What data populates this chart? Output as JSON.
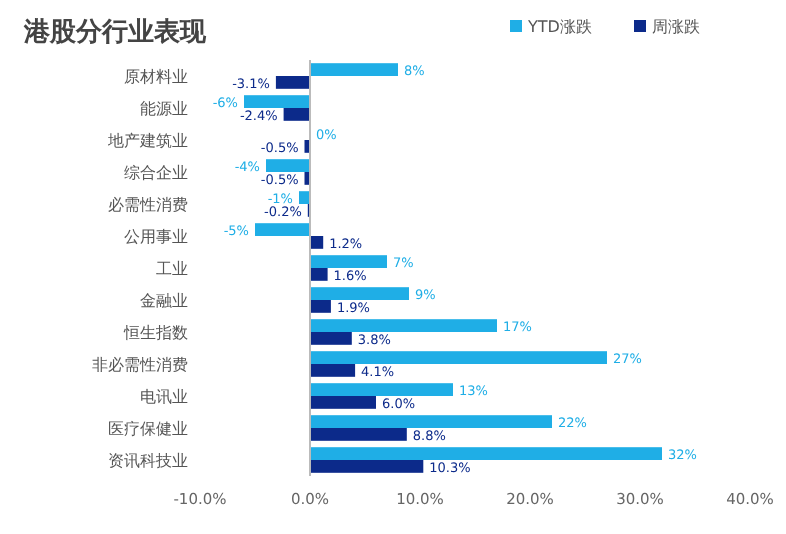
{
  "chart_data": {
    "type": "bar",
    "orientation": "horizontal",
    "title": "港股分行业表现",
    "legend": "top right",
    "categories": [
      "原材料业",
      "能源业",
      "地产建筑业",
      "综合企业",
      "必需性消费",
      "公用事业",
      "工业",
      "金融业",
      "恒生指数",
      "非必需性消费",
      "电讯业",
      "医疗保健业",
      "资讯科技业"
    ],
    "series": [
      {
        "name": "YTD涨跌",
        "color": "#1faee6",
        "values": [
          8,
          -6,
          0,
          -4,
          -1,
          -5,
          7,
          9,
          17,
          27,
          13,
          22,
          32
        ],
        "value_labels": [
          "8%",
          "-6%",
          "0%",
          "-4%",
          "-1%",
          "-5%",
          "7%",
          "9%",
          "17%",
          "27%",
          "13%",
          "22%",
          "32%"
        ]
      },
      {
        "name": "周涨跌",
        "color": "#0c2a8a",
        "values": [
          -3.1,
          -2.4,
          -0.5,
          -0.5,
          -0.2,
          1.2,
          1.6,
          1.9,
          3.8,
          4.1,
          6.0,
          8.8,
          10.3
        ],
        "value_labels": [
          "-3.1%",
          "-2.4%",
          "-0.5%",
          "-0.5%",
          "-0.2%",
          "1.2%",
          "1.6%",
          "1.9%",
          "3.8%",
          "4.1%",
          "6.0%",
          "8.8%",
          "10.3%"
        ]
      }
    ],
    "xlim": [
      -10,
      40
    ],
    "xticks": [
      {
        "value": -10,
        "label": "-10.0%"
      },
      {
        "value": 0,
        "label": "0.0%"
      },
      {
        "value": 10,
        "label": "10.0%"
      },
      {
        "value": 20,
        "label": "20.0%"
      },
      {
        "value": 30,
        "label": "30.0%"
      },
      {
        "value": 40,
        "label": "40.0%"
      }
    ]
  }
}
